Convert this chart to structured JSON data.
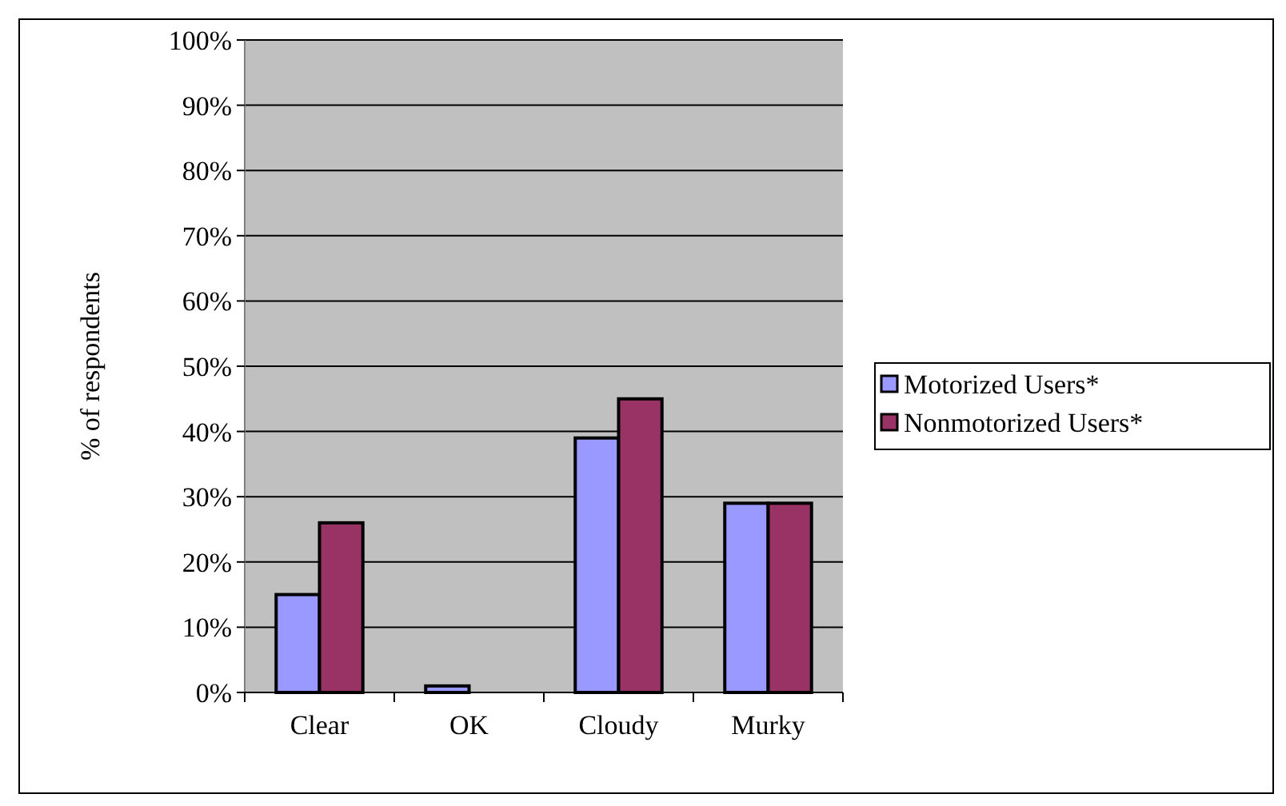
{
  "chart_data": {
    "type": "bar",
    "ylabel": "% of respondents",
    "categories": [
      "Clear",
      "OK",
      "Cloudy",
      "Murky"
    ],
    "series": [
      {
        "name": "Motorized Users*",
        "color": "#9999ff",
        "values": [
          15,
          1,
          39,
          29
        ]
      },
      {
        "name": "Nonmotorized Users*",
        "color": "#993366",
        "values": [
          26,
          0,
          45,
          29
        ]
      }
    ],
    "ylim": [
      0,
      100
    ],
    "yticks": [
      {
        "value": 0,
        "label": "0%"
      },
      {
        "value": 10,
        "label": "10%"
      },
      {
        "value": 20,
        "label": "20%"
      },
      {
        "value": 30,
        "label": "30%"
      },
      {
        "value": 40,
        "label": "40%"
      },
      {
        "value": 50,
        "label": "50%"
      },
      {
        "value": 60,
        "label": "60%"
      },
      {
        "value": 70,
        "label": "70%"
      },
      {
        "value": 80,
        "label": "80%"
      },
      {
        "value": 90,
        "label": "90%"
      },
      {
        "value": 100,
        "label": "100%"
      }
    ],
    "grid": "y",
    "legend": "right"
  }
}
